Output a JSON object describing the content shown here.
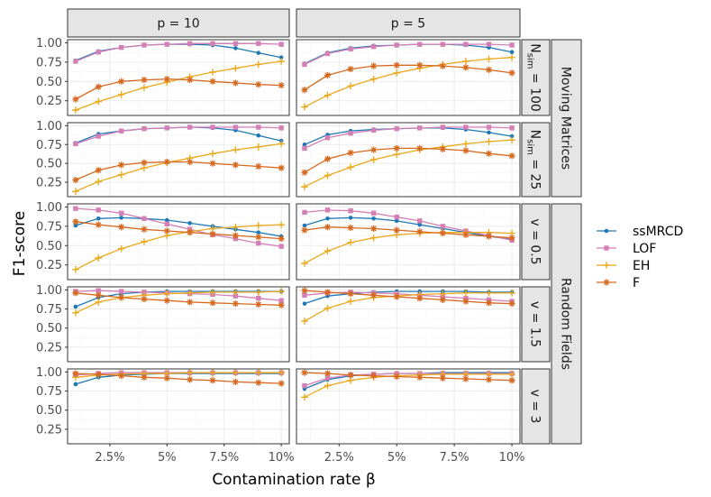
{
  "chart_data": {
    "type": "line",
    "ylabel": "F1-score",
    "xlabel": "Contamination rate β",
    "x": [
      0.01,
      0.02,
      0.03,
      0.04,
      0.05,
      0.06,
      0.07,
      0.08,
      0.09,
      0.1
    ],
    "xlim": [
      0.0065,
      0.1035
    ],
    "ylim": [
      0.06,
      1.04
    ],
    "x_ticks": [
      0.025,
      0.05,
      0.075,
      0.1
    ],
    "x_tick_labels": [
      "2.5%",
      "5%",
      "7.5%",
      "10%"
    ],
    "y_ticks": [
      0.25,
      0.5,
      0.75,
      1.0
    ],
    "y_tick_labels": [
      "0.25",
      "0.50",
      "0.75",
      "1.00"
    ],
    "column_strips": [
      "p = 10",
      "p = 5"
    ],
    "row_strips": [
      "N_sim = 100",
      "N_sim = 25",
      "v = 0.5",
      "v = 1.5",
      "v = 3"
    ],
    "group_strips": [
      "Moving Matrices",
      "Random Fields"
    ],
    "legend": [
      {
        "name": "ssMRCD",
        "color": "#1f78b4",
        "marker": "dot"
      },
      {
        "name": "LOF",
        "color": "#d47fb5",
        "marker": "square"
      },
      {
        "name": "EH",
        "color": "#eaa91d",
        "marker": "plus"
      },
      {
        "name": "F",
        "color": "#d6691f",
        "marker": "star"
      }
    ],
    "panels": [
      {
        "row": "N_sim = 100",
        "col": "p = 10",
        "series": {
          "ssMRCD": [
            0.77,
            0.89,
            0.94,
            0.97,
            0.98,
            0.98,
            0.97,
            0.93,
            0.87,
            0.81
          ],
          "LOF": [
            0.76,
            0.88,
            0.94,
            0.97,
            0.98,
            0.99,
            0.99,
            0.99,
            0.99,
            0.98
          ],
          "EH": [
            0.13,
            0.24,
            0.33,
            0.42,
            0.49,
            0.56,
            0.62,
            0.67,
            0.72,
            0.76
          ],
          "F": [
            0.27,
            0.43,
            0.5,
            0.52,
            0.53,
            0.52,
            0.5,
            0.48,
            0.46,
            0.45
          ]
        }
      },
      {
        "row": "N_sim = 100",
        "col": "p = 5",
        "series": {
          "ssMRCD": [
            0.73,
            0.87,
            0.93,
            0.96,
            0.97,
            0.98,
            0.98,
            0.97,
            0.94,
            0.88
          ],
          "LOF": [
            0.72,
            0.86,
            0.92,
            0.95,
            0.97,
            0.98,
            0.98,
            0.98,
            0.98,
            0.97
          ],
          "EH": [
            0.17,
            0.32,
            0.44,
            0.53,
            0.61,
            0.67,
            0.72,
            0.76,
            0.79,
            0.81
          ],
          "F": [
            0.39,
            0.58,
            0.66,
            0.7,
            0.71,
            0.71,
            0.7,
            0.68,
            0.65,
            0.61
          ]
        }
      },
      {
        "row": "N_sim = 25",
        "col": "p = 10",
        "series": {
          "ssMRCD": [
            0.77,
            0.89,
            0.93,
            0.96,
            0.97,
            0.98,
            0.97,
            0.94,
            0.87,
            0.8
          ],
          "LOF": [
            0.76,
            0.86,
            0.93,
            0.96,
            0.97,
            0.98,
            0.98,
            0.98,
            0.98,
            0.97
          ],
          "EH": [
            0.13,
            0.26,
            0.35,
            0.44,
            0.51,
            0.57,
            0.63,
            0.68,
            0.72,
            0.76
          ],
          "F": [
            0.28,
            0.41,
            0.48,
            0.51,
            0.52,
            0.52,
            0.5,
            0.48,
            0.46,
            0.44
          ]
        }
      },
      {
        "row": "N_sim = 25",
        "col": "p = 5",
        "series": {
          "ssMRCD": [
            0.75,
            0.88,
            0.93,
            0.95,
            0.96,
            0.97,
            0.97,
            0.95,
            0.91,
            0.86
          ],
          "LOF": [
            0.7,
            0.84,
            0.9,
            0.94,
            0.96,
            0.97,
            0.98,
            0.98,
            0.98,
            0.97
          ],
          "EH": [
            0.19,
            0.34,
            0.45,
            0.55,
            0.62,
            0.68,
            0.72,
            0.76,
            0.79,
            0.81
          ],
          "F": [
            0.38,
            0.56,
            0.64,
            0.68,
            0.7,
            0.7,
            0.69,
            0.67,
            0.63,
            0.6
          ]
        }
      },
      {
        "row": "v = 0.5",
        "col": "p = 10",
        "series": {
          "ssMRCD": [
            0.76,
            0.85,
            0.86,
            0.85,
            0.83,
            0.79,
            0.75,
            0.71,
            0.67,
            0.62
          ],
          "LOF": [
            0.98,
            0.96,
            0.92,
            0.85,
            0.78,
            0.71,
            0.64,
            0.59,
            0.53,
            0.49
          ],
          "EH": [
            0.19,
            0.34,
            0.46,
            0.55,
            0.63,
            0.68,
            0.72,
            0.74,
            0.76,
            0.77
          ],
          "F": [
            0.81,
            0.77,
            0.74,
            0.71,
            0.69,
            0.67,
            0.65,
            0.63,
            0.61,
            0.59
          ]
        }
      },
      {
        "row": "v = 0.5",
        "col": "p = 5",
        "series": {
          "ssMRCD": [
            0.76,
            0.85,
            0.86,
            0.85,
            0.82,
            0.77,
            0.72,
            0.67,
            0.62,
            0.58
          ],
          "LOF": [
            0.93,
            0.96,
            0.95,
            0.92,
            0.87,
            0.82,
            0.75,
            0.69,
            0.63,
            0.57
          ],
          "EH": [
            0.27,
            0.43,
            0.54,
            0.6,
            0.64,
            0.66,
            0.67,
            0.67,
            0.67,
            0.66
          ],
          "F": [
            0.7,
            0.74,
            0.73,
            0.72,
            0.7,
            0.68,
            0.66,
            0.64,
            0.62,
            0.6
          ]
        }
      },
      {
        "row": "v = 1.5",
        "col": "p = 10",
        "series": {
          "ssMRCD": [
            0.78,
            0.9,
            0.95,
            0.97,
            0.98,
            0.98,
            0.98,
            0.98,
            0.98,
            0.98
          ],
          "LOF": [
            0.98,
            0.99,
            0.98,
            0.97,
            0.96,
            0.95,
            0.94,
            0.92,
            0.89,
            0.86
          ],
          "EH": [
            0.7,
            0.84,
            0.9,
            0.93,
            0.95,
            0.96,
            0.97,
            0.97,
            0.97,
            0.98
          ],
          "F": [
            0.96,
            0.93,
            0.9,
            0.88,
            0.86,
            0.84,
            0.83,
            0.82,
            0.81,
            0.8
          ]
        }
      },
      {
        "row": "v = 1.5",
        "col": "p = 5",
        "series": {
          "ssMRCD": [
            0.82,
            0.92,
            0.95,
            0.97,
            0.98,
            0.98,
            0.98,
            0.98,
            0.97,
            0.97
          ],
          "LOF": [
            0.93,
            0.96,
            0.97,
            0.96,
            0.95,
            0.93,
            0.91,
            0.89,
            0.87,
            0.85
          ],
          "EH": [
            0.59,
            0.76,
            0.85,
            0.9,
            0.92,
            0.94,
            0.95,
            0.96,
            0.96,
            0.96
          ],
          "F": [
            0.99,
            0.97,
            0.95,
            0.93,
            0.91,
            0.89,
            0.87,
            0.85,
            0.83,
            0.82
          ]
        }
      },
      {
        "row": "v = 3",
        "col": "p = 10",
        "series": {
          "ssMRCD": [
            0.84,
            0.93,
            0.96,
            0.97,
            0.98,
            0.98,
            0.98,
            0.98,
            0.98,
            0.98
          ],
          "LOF": [
            0.96,
            0.98,
            0.99,
            0.99,
            0.99,
            0.99,
            0.99,
            0.99,
            0.99,
            0.99
          ],
          "EH": [
            0.93,
            0.96,
            0.97,
            0.98,
            0.98,
            0.99,
            0.99,
            0.99,
            0.99,
            0.99
          ],
          "F": [
            0.98,
            0.97,
            0.95,
            0.93,
            0.92,
            0.9,
            0.89,
            0.87,
            0.86,
            0.85
          ]
        }
      },
      {
        "row": "v = 3",
        "col": "p = 5",
        "series": {
          "ssMRCD": [
            0.78,
            0.9,
            0.95,
            0.97,
            0.98,
            0.98,
            0.99,
            0.99,
            0.99,
            0.99
          ],
          "LOF": [
            0.82,
            0.92,
            0.96,
            0.97,
            0.98,
            0.98,
            0.98,
            0.98,
            0.98,
            0.98
          ],
          "EH": [
            0.67,
            0.82,
            0.89,
            0.93,
            0.95,
            0.96,
            0.97,
            0.97,
            0.97,
            0.97
          ],
          "F": [
            0.99,
            0.98,
            0.96,
            0.95,
            0.94,
            0.93,
            0.92,
            0.91,
            0.9,
            0.89
          ]
        }
      }
    ]
  }
}
